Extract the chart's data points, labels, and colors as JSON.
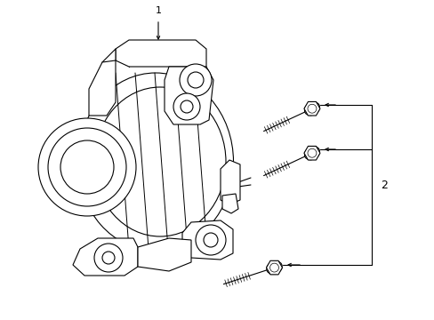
{
  "background_color": "#ffffff",
  "line_color": "#000000",
  "label1": "1",
  "label2": "2",
  "fig_width": 4.89,
  "fig_height": 3.6,
  "dpi": 100
}
